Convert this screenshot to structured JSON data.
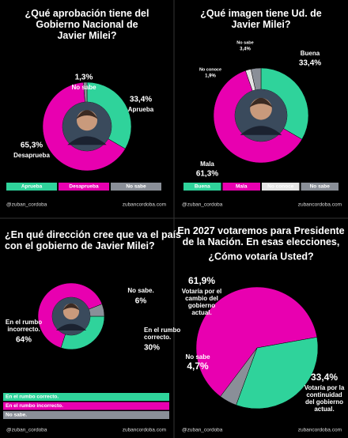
{
  "chart_data": [
    {
      "type": "pie",
      "title": "¿Qué aprobación tiene del Gobierno Nacional de Javier Milei?",
      "categories": [
        "Aprueba",
        "Desaprueba",
        "No sabe"
      ],
      "values": [
        33.4,
        65.3,
        1.3
      ],
      "value_labels": [
        "33,4%",
        "65,3%",
        "1,3%"
      ],
      "colors": [
        "#2fd39b",
        "#e800b0",
        "#8a8f98"
      ],
      "legend": "bottom",
      "footer": [
        "@zuban_cordoba",
        "zubancordoba.com"
      ]
    },
    {
      "type": "pie",
      "title": "¿Qué imagen tiene Ud. de Javier Milei?",
      "categories": [
        "Buena",
        "Mala",
        "No conoce",
        "No sabe"
      ],
      "values": [
        33.4,
        61.3,
        1.9,
        3.4
      ],
      "value_labels": [
        "33,4%",
        "61,3%",
        "1,9%",
        "3,4%"
      ],
      "colors": [
        "#2fd39b",
        "#e800b0",
        "#e4e4e4",
        "#8a8f98"
      ],
      "legend": "bottom",
      "footer": [
        "@zuban_cordoba",
        "zubancordoba.com"
      ]
    },
    {
      "type": "pie",
      "title": "¿En qué dirección cree que va el país con el gobierno de Javier Milei?",
      "categories": [
        "En el rumbo correcto.",
        "En el rumbo incorrecto.",
        "No sabe."
      ],
      "values": [
        30,
        64,
        6
      ],
      "value_labels": [
        "30%",
        "64%",
        "6%"
      ],
      "colors": [
        "#2fd39b",
        "#e800b0",
        "#8a8f98"
      ],
      "legend": "bottom",
      "footer": [
        "@zuban_cordoba",
        "zubancordoba.com"
      ]
    },
    {
      "type": "pie",
      "title": "En 2027 votaremos para Presidente de la Nación. En esas elecciones,",
      "subtitle": "¿Cómo votaría Usted?",
      "categories": [
        "Votaría por el cambio del gobierno actual.",
        "Votaría por la continuidad del gobierno actual.",
        "No sabe"
      ],
      "values": [
        61.9,
        33.4,
        4.7
      ],
      "value_labels": [
        "61,9%",
        "33,4%",
        "4,7%"
      ],
      "colors": [
        "#e800b0",
        "#2fd39b",
        "#8a8f98"
      ],
      "footer": [
        "@zuban_cordoba",
        "zubancordoba.com"
      ]
    }
  ]
}
